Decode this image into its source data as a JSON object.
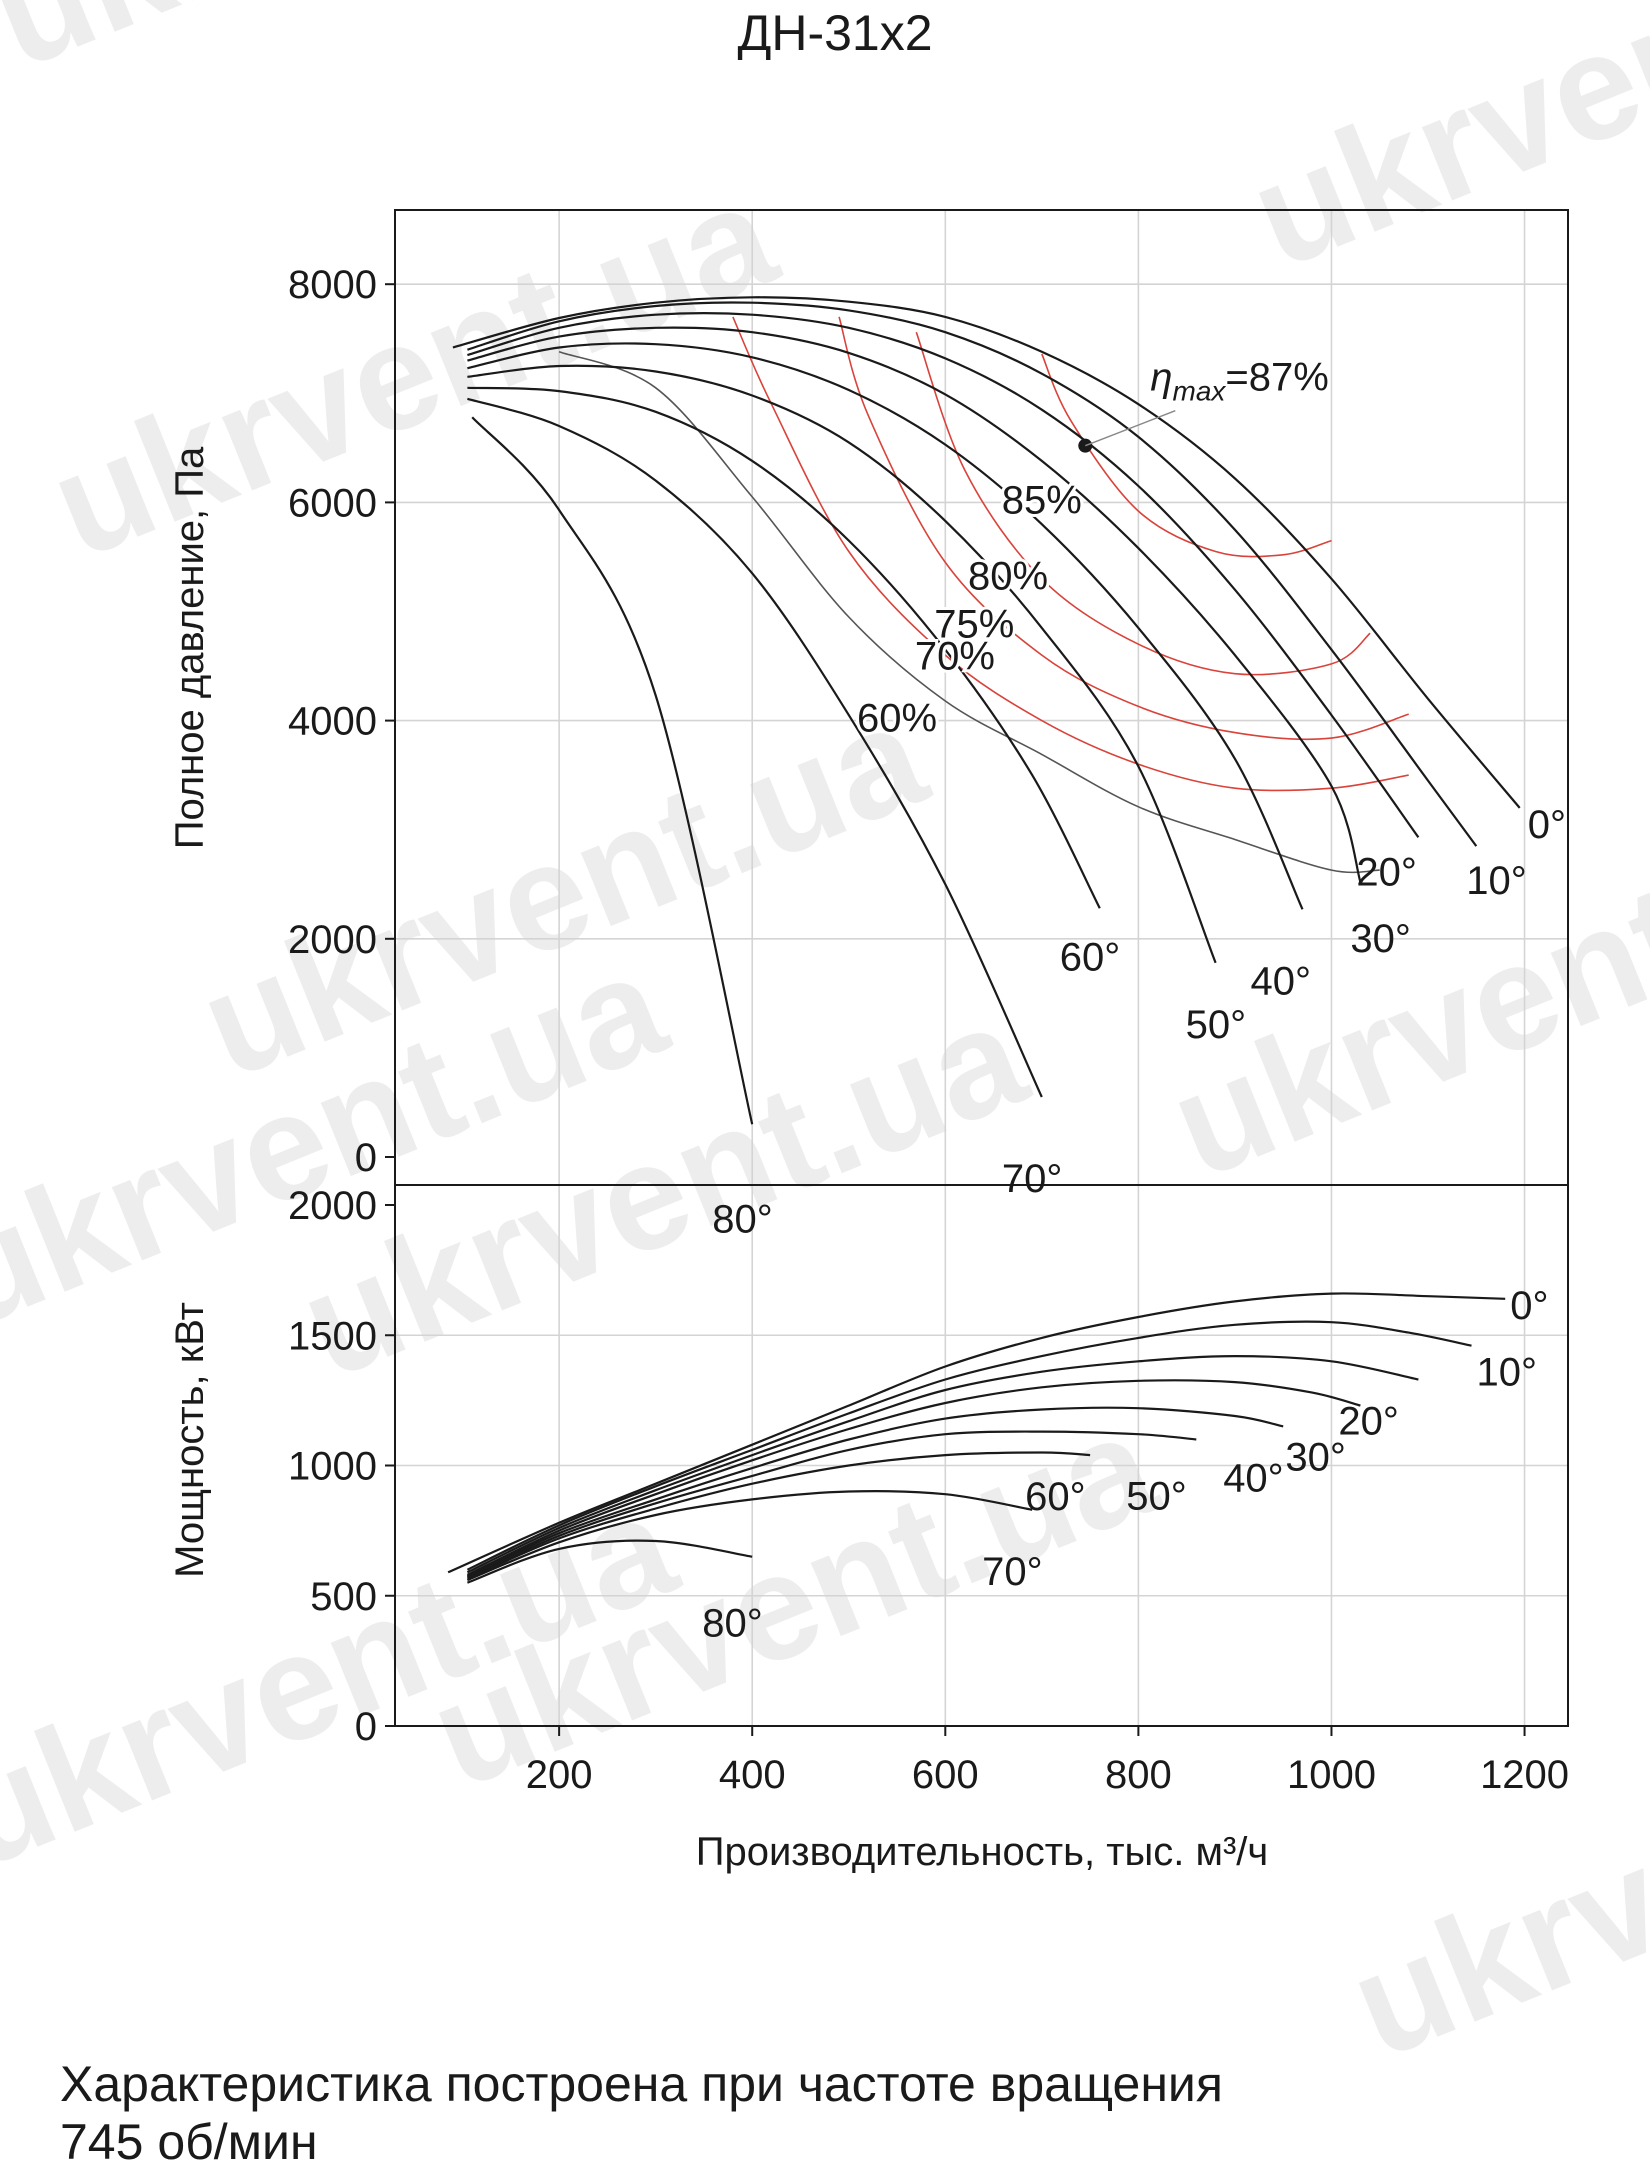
{
  "chart_data": [
    {
      "type": "line",
      "title": "ДН-31х2",
      "xlabel": "Производительность, тыс. м³/ч",
      "ylabel": "Полное давление, Па",
      "xlim": [
        30,
        1245
      ],
      "ylim": [
        0,
        8700
      ],
      "xticks": [
        200,
        400,
        600,
        800,
        1000,
        1200
      ],
      "yticks": [
        0,
        2000,
        4000,
        6000,
        8000
      ],
      "grid": true,
      "series": [
        {
          "name": "0°",
          "x": [
            90,
            200,
            300,
            400,
            500,
            600,
            700,
            800,
            900,
            1000,
            1100,
            1195
          ],
          "y": [
            7420,
            7690,
            7830,
            7880,
            7840,
            7700,
            7380,
            6900,
            6220,
            5300,
            4200,
            3200
          ]
        },
        {
          "name": "10°",
          "x": [
            105,
            200,
            300,
            400,
            500,
            600,
            700,
            800,
            900,
            1000,
            1100,
            1150
          ],
          "y": [
            7400,
            7660,
            7800,
            7830,
            7760,
            7560,
            7180,
            6600,
            5750,
            4650,
            3450,
            2850
          ]
        },
        {
          "name": "20°",
          "x": [
            105,
            200,
            300,
            400,
            500,
            600,
            700,
            800,
            900,
            1000,
            1090
          ],
          "y": [
            7350,
            7600,
            7720,
            7720,
            7600,
            7320,
            6850,
            6150,
            5200,
            4050,
            2930
          ]
        },
        {
          "name": "30°",
          "x": [
            105,
            200,
            300,
            400,
            500,
            600,
            700,
            800,
            900,
            1000,
            1030
          ],
          "y": [
            7300,
            7520,
            7600,
            7560,
            7370,
            6990,
            6380,
            5580,
            4600,
            3400,
            2520
          ]
        },
        {
          "name": "40°",
          "x": [
            105,
            200,
            300,
            400,
            500,
            600,
            700,
            800,
            900,
            970
          ],
          "y": [
            7230,
            7420,
            7450,
            7330,
            7030,
            6530,
            5800,
            4850,
            3650,
            2270
          ]
        },
        {
          "name": "50°",
          "x": [
            105,
            200,
            300,
            400,
            500,
            600,
            700,
            800,
            880
          ],
          "y": [
            7150,
            7250,
            7200,
            6980,
            6550,
            5830,
            4850,
            3580,
            1780
          ]
        },
        {
          "name": "60°",
          "x": [
            105,
            200,
            300,
            400,
            500,
            600,
            690,
            760
          ],
          "y": [
            7050,
            7020,
            6830,
            6380,
            5650,
            4650,
            3500,
            2280
          ]
        },
        {
          "name": "70°",
          "x": [
            105,
            200,
            300,
            400,
            500,
            600,
            700
          ],
          "y": [
            6950,
            6700,
            6200,
            5350,
            4050,
            2500,
            550
          ]
        },
        {
          "name": "80°",
          "x": [
            110,
            200,
            300,
            400
          ],
          "y": [
            6780,
            5930,
            4230,
            300
          ]
        }
      ],
      "efficiency_curves": [
        {
          "name": "60%",
          "x": [
            200,
            300,
            400,
            500,
            600,
            700,
            800,
            900,
            1000,
            1050
          ],
          "y": [
            7380,
            7050,
            6050,
            4950,
            4180,
            3690,
            3210,
            2910,
            2630,
            2630
          ]
        },
        {
          "name": "70%",
          "x": [
            380,
            420,
            500,
            600,
            700,
            800,
            900,
            1000,
            1080
          ],
          "y": [
            7700,
            6900,
            5550,
            4600,
            4000,
            3600,
            3380,
            3380,
            3500
          ]
        },
        {
          "name": "75%",
          "x": [
            490,
            520,
            600,
            700,
            800,
            900,
            1000,
            1080
          ],
          "y": [
            7700,
            6800,
            5450,
            4600,
            4130,
            3890,
            3840,
            4060
          ]
        },
        {
          "name": "80%",
          "x": [
            570,
            620,
            700,
            800,
            900,
            1000,
            1040
          ],
          "y": [
            7560,
            6300,
            5300,
            4700,
            4430,
            4520,
            4800
          ]
        },
        {
          "name": "85%",
          "x": [
            700,
            730,
            800,
            880,
            950,
            1000
          ],
          "y": [
            7360,
            6750,
            5920,
            5550,
            5520,
            5650
          ]
        }
      ],
      "eta_max_point": {
        "x": 745,
        "y": 6520,
        "label": "η",
        "label_sub": "max",
        "label_rest": "=87%"
      }
    },
    {
      "type": "line",
      "xlabel": "Производительность, тыс. м³/ч",
      "ylabel": "Мощность, кВт",
      "xlim": [
        30,
        1245
      ],
      "ylim": [
        0,
        2000
      ],
      "xticks": [
        200,
        400,
        600,
        800,
        1000,
        1200
      ],
      "yticks": [
        0,
        500,
        1000,
        1500,
        2000
      ],
      "grid": true,
      "series": [
        {
          "name": "0°",
          "x": [
            85,
            200,
            300,
            400,
            500,
            600,
            700,
            800,
            900,
            1000,
            1100,
            1180
          ],
          "y": [
            590,
            780,
            930,
            1080,
            1230,
            1380,
            1490,
            1570,
            1630,
            1660,
            1650,
            1640
          ]
        },
        {
          "name": "10°",
          "x": [
            105,
            200,
            300,
            400,
            500,
            600,
            700,
            800,
            900,
            1000,
            1080,
            1145
          ],
          "y": [
            600,
            770,
            920,
            1060,
            1200,
            1330,
            1420,
            1490,
            1540,
            1550,
            1510,
            1460
          ]
        },
        {
          "name": "20°",
          "x": [
            105,
            200,
            300,
            400,
            500,
            600,
            700,
            800,
            900,
            1000,
            1090
          ],
          "y": [
            590,
            760,
            905,
            1040,
            1170,
            1290,
            1360,
            1400,
            1420,
            1400,
            1330
          ]
        },
        {
          "name": "30°",
          "x": [
            105,
            200,
            300,
            400,
            500,
            600,
            700,
            800,
            900,
            980,
            1030
          ],
          "y": [
            580,
            750,
            890,
            1020,
            1140,
            1240,
            1300,
            1325,
            1320,
            1280,
            1230
          ]
        },
        {
          "name": "40°",
          "x": [
            105,
            200,
            300,
            400,
            500,
            600,
            700,
            800,
            900,
            950
          ],
          "y": [
            575,
            740,
            870,
            990,
            1100,
            1180,
            1215,
            1220,
            1190,
            1150
          ]
        },
        {
          "name": "50°",
          "x": [
            105,
            200,
            300,
            400,
            500,
            600,
            700,
            800,
            860
          ],
          "y": [
            570,
            730,
            855,
            960,
            1060,
            1120,
            1130,
            1120,
            1100
          ]
        },
        {
          "name": "60°",
          "x": [
            105,
            200,
            300,
            400,
            500,
            600,
            700,
            750
          ],
          "y": [
            565,
            720,
            835,
            930,
            1000,
            1040,
            1050,
            1040
          ]
        },
        {
          "name": "70°",
          "x": [
            105,
            200,
            300,
            400,
            500,
            600,
            690
          ],
          "y": [
            560,
            705,
            810,
            870,
            900,
            890,
            830
          ]
        },
        {
          "name": "80°",
          "x": [
            105,
            200,
            300,
            400
          ],
          "y": [
            550,
            680,
            710,
            650
          ]
        }
      ]
    }
  ],
  "caption": {
    "line1": "Характеристика построена при частоте вращения",
    "line2": "745 об/мин"
  },
  "watermark": "ukrvent.ua"
}
